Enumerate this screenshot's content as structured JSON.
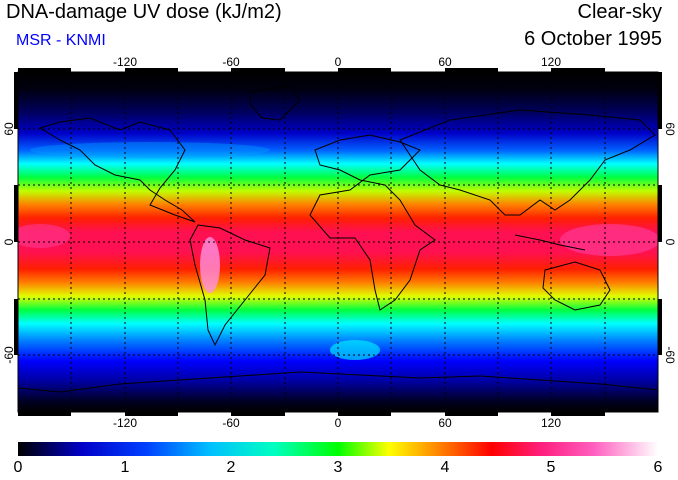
{
  "header": {
    "title": "DNA-damage UV dose (kJ/m2)",
    "source": "MSR - KNMI",
    "condition": "Clear-sky",
    "date": "6 October 1995"
  },
  "map": {
    "longitude_ticks": [
      "-120",
      "-60",
      "0",
      "60",
      "120"
    ],
    "latitude_ticks": [
      "60",
      "0",
      "-60"
    ],
    "lon_values": [
      -120,
      -60,
      0,
      60,
      120
    ],
    "lat_values": [
      60,
      0,
      -60
    ],
    "lon_range": [
      -180,
      180
    ],
    "lat_range": [
      -90,
      90
    ],
    "gridlines": "dashed every 30 degrees"
  },
  "colorbar": {
    "min": 0,
    "max": 6,
    "tick_labels": [
      "0",
      "1",
      "2",
      "3",
      "4",
      "5",
      "6"
    ],
    "colors": [
      "#000000",
      "#0000c8",
      "#0080ff",
      "#00ffff",
      "#00ff00",
      "#ffff00",
      "#ff8000",
      "#ff0000",
      "#ff2080",
      "#ff60c0",
      "#ffffff"
    ]
  }
}
